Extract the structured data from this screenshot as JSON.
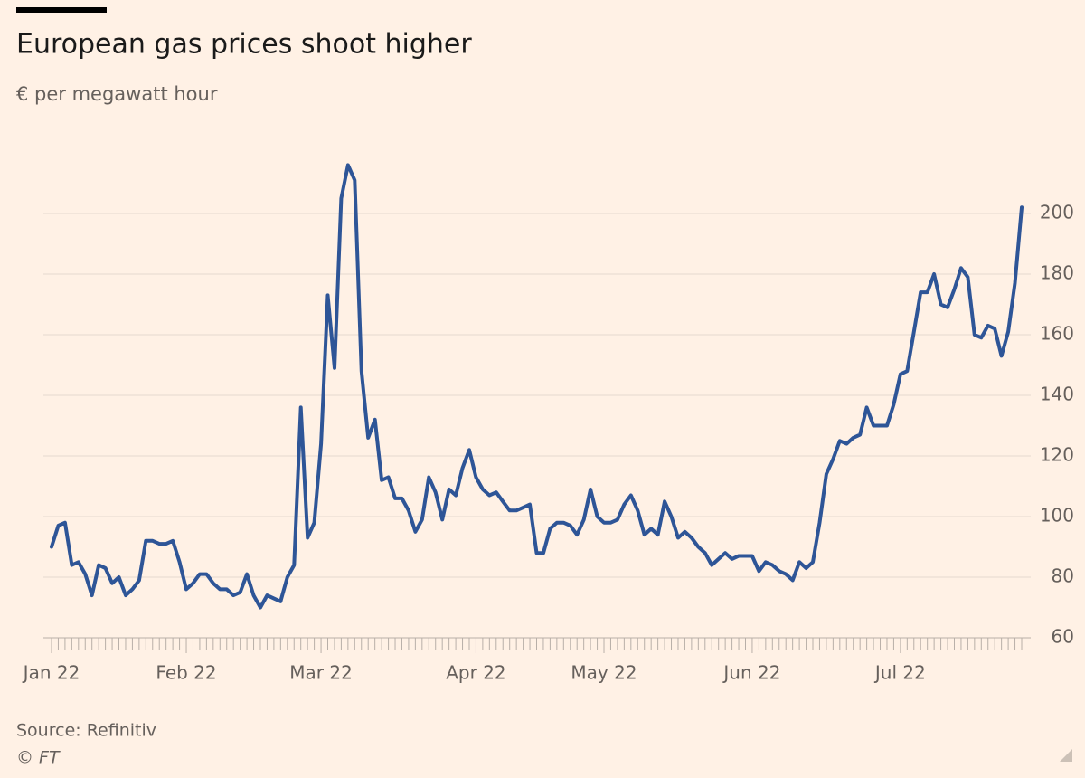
{
  "chart_data": {
    "type": "line",
    "title": "European gas prices shoot higher",
    "subtitle": "€ per megawatt hour",
    "source": "Source: Refinitiv",
    "credit": "© FT",
    "categories": [
      "Jan 22",
      null,
      null,
      null,
      null,
      null,
      null,
      null,
      null,
      null,
      null,
      null,
      null,
      null,
      null,
      null,
      null,
      null,
      null,
      null,
      "Feb 22",
      null,
      null,
      null,
      null,
      null,
      null,
      null,
      null,
      null,
      null,
      null,
      null,
      null,
      null,
      null,
      null,
      null,
      null,
      null,
      "Mar 22",
      null,
      null,
      null,
      null,
      null,
      null,
      null,
      null,
      null,
      null,
      null,
      null,
      null,
      null,
      null,
      null,
      null,
      null,
      null,
      null,
      null,
      null,
      "Apr 22",
      null,
      null,
      null,
      null,
      null,
      null,
      null,
      null,
      null,
      null,
      null,
      null,
      null,
      null,
      null,
      null,
      null,
      null,
      "May 22",
      null,
      null,
      null,
      null,
      null,
      null,
      null,
      null,
      null,
      null,
      null,
      null,
      null,
      null,
      null,
      null,
      null,
      null,
      null,
      null,
      null,
      "Jun 22",
      null,
      null,
      null,
      null,
      null,
      null,
      null,
      null,
      null,
      null,
      null,
      null,
      null,
      null,
      null,
      null,
      null,
      null,
      null,
      null,
      null,
      "Jul 22",
      null,
      null,
      null,
      null,
      null,
      null,
      null,
      null,
      null,
      null,
      null,
      null,
      null,
      null,
      null,
      null,
      null,
      null
    ],
    "series": [
      {
        "name": "Gas price",
        "color": "#2e5597",
        "values": [
          90,
          97,
          98,
          84,
          85,
          81,
          74,
          84,
          83,
          78,
          80,
          74,
          76,
          79,
          92,
          92,
          91,
          91,
          92,
          85,
          76,
          78,
          81,
          81,
          78,
          76,
          76,
          74,
          75,
          81,
          74,
          70,
          74,
          73,
          72,
          80,
          84,
          136,
          93,
          98,
          124,
          173,
          149,
          205,
          216,
          211,
          148,
          126,
          132,
          112,
          113,
          106,
          106,
          102,
          95,
          99,
          113,
          108,
          99,
          109,
          107,
          116,
          122,
          113,
          109,
          107,
          108,
          105,
          102,
          102,
          103,
          104,
          88,
          88,
          96,
          98,
          98,
          97,
          94,
          99,
          109,
          100,
          98,
          98,
          99,
          104,
          107,
          102,
          94,
          96,
          94,
          105,
          100,
          93,
          95,
          93,
          90,
          88,
          84,
          86,
          88,
          86,
          87,
          87,
          87,
          82,
          85,
          84,
          82,
          81,
          79,
          85,
          83,
          85,
          98,
          114,
          119,
          125,
          124,
          126,
          127,
          136,
          130,
          130,
          130,
          137,
          147,
          148,
          161,
          174,
          174,
          180,
          170,
          169,
          175,
          182,
          179,
          160,
          159,
          163,
          162,
          153,
          161,
          177,
          202
        ]
      }
    ],
    "ylim": [
      60,
      220
    ],
    "yticks": [
      60,
      80,
      100,
      120,
      140,
      160,
      180,
      200
    ],
    "grid": true
  }
}
